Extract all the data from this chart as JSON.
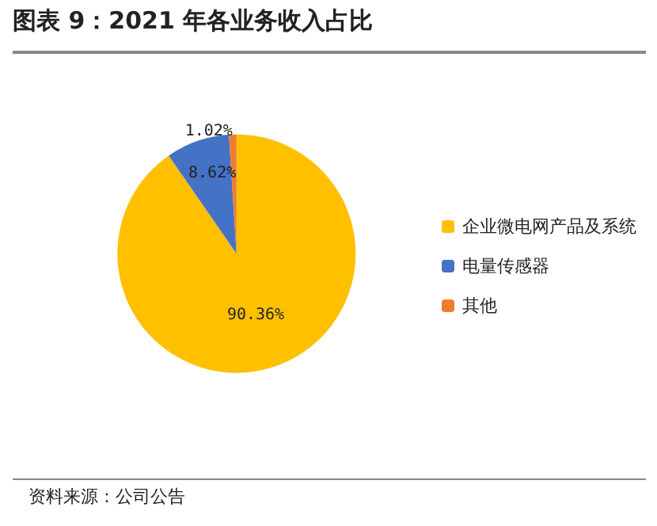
{
  "chart_data": {
    "type": "pie",
    "title": "图表 9：2021 年各业务收入占比",
    "categories": [
      "企业微电网产品及系统",
      "电量传感器",
      "其他"
    ],
    "values": [
      90.36,
      8.62,
      1.02
    ],
    "colors": [
      "#ffc000",
      "#4472c4",
      "#ed7d31"
    ],
    "value_labels": [
      "90.36%",
      "8.62%",
      "1.02%"
    ],
    "legend": "right",
    "annotations": [
      "资料来源：公司公告"
    ]
  }
}
